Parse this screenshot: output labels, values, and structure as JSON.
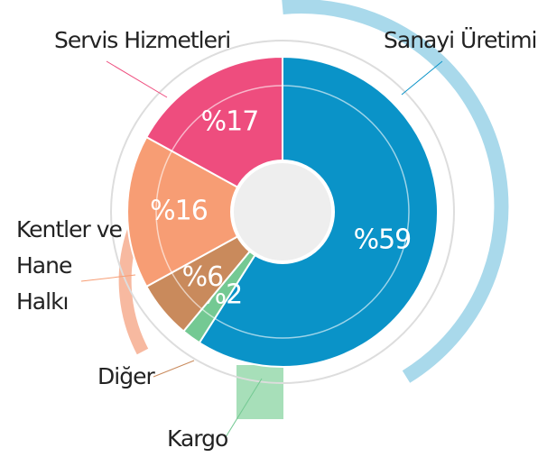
{
  "chart_data": {
    "type": "pie",
    "categories": [
      "Sanayi Üretimi",
      "Kargo",
      "Diğer",
      "Kentler ve Hane Halkı",
      "Servis Hizmetleri"
    ],
    "values": [
      59,
      2,
      6,
      16,
      17
    ],
    "value_labels": [
      "%59",
      "%2",
      "%6",
      "%16",
      "%17"
    ],
    "colors": [
      "#0a93c8",
      "#74c993",
      "#c98a5c",
      "#f79d74",
      "#ee4d7e"
    ]
  }
}
